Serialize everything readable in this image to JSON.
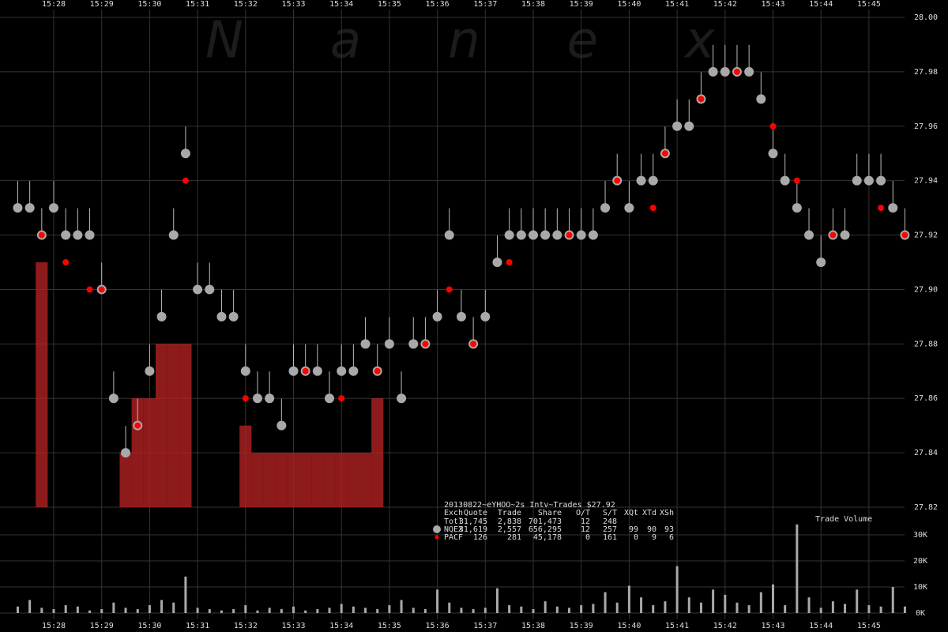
{
  "chart_data": [
    {
      "type": "scatter",
      "watermark": "Nanex",
      "categories": [
        null,
        null,
        null,
        "15:28",
        null,
        null,
        null,
        "15:29",
        null,
        null,
        null,
        "15:30",
        null,
        null,
        null,
        "15:31",
        null,
        null,
        null,
        "15:32",
        null,
        null,
        null,
        "15:33",
        null,
        null,
        null,
        "15:34",
        null,
        null,
        null,
        "15:35",
        null,
        null,
        null,
        "15:36",
        null,
        null,
        null,
        "15:37",
        null,
        null,
        null,
        "15:38",
        null,
        null,
        null,
        "15:39",
        null,
        null,
        null,
        "15:40",
        null,
        null,
        null,
        "15:41",
        null,
        null,
        null,
        "15:42",
        null,
        null,
        null,
        "15:43",
        null,
        null,
        null,
        "15:44",
        null,
        null,
        null,
        "15:45",
        null,
        null,
        null
      ],
      "series": [
        {
          "type": "bar",
          "color": "#b22222",
          "values": [
            null,
            null,
            27.91,
            27.82,
            27.82,
            27.82,
            27.82,
            27.82,
            27.82,
            27.84,
            27.86,
            27.86,
            27.88,
            27.88,
            27.88,
            27.82,
            27.82,
            27.82,
            27.82,
            27.85,
            27.84,
            27.84,
            27.84,
            27.84,
            27.84,
            27.84,
            27.84,
            27.84,
            27.84,
            27.84,
            27.86,
            null,
            null,
            null,
            null,
            null,
            null,
            null,
            null,
            null,
            null,
            null,
            null,
            null,
            null,
            null,
            null,
            null,
            null,
            null,
            null,
            null,
            null,
            null,
            null,
            null,
            null,
            null,
            null,
            null,
            null,
            null,
            null,
            null,
            null,
            null,
            null,
            null,
            null,
            null,
            null,
            null,
            null,
            null,
            null
          ]
        },
        {
          "type": "scatter",
          "color": "#a9a9a9",
          "values": [
            27.93,
            27.93,
            27.92,
            27.93,
            27.92,
            27.92,
            27.92,
            27.9,
            27.86,
            27.84,
            27.85,
            27.87,
            27.89,
            27.92,
            27.95,
            27.9,
            27.9,
            27.89,
            27.89,
            27.87,
            27.86,
            27.86,
            27.85,
            27.87,
            27.87,
            27.87,
            27.86,
            27.87,
            27.87,
            27.88,
            27.87,
            27.88,
            27.86,
            27.88,
            27.88,
            27.89,
            27.92,
            27.89,
            27.88,
            27.89,
            27.91,
            27.92,
            27.92,
            27.92,
            27.92,
            27.92,
            27.92,
            27.92,
            27.92,
            27.93,
            27.94,
            27.93,
            27.94,
            27.94,
            27.95,
            27.96,
            27.96,
            27.97,
            27.98,
            27.98,
            27.98,
            27.98,
            27.97,
            27.95,
            27.94,
            27.93,
            27.92,
            27.91,
            27.92,
            27.92,
            27.94,
            27.94,
            27.94,
            27.93,
            27.92
          ]
        },
        {
          "type": "scatter",
          "color": "#ff0000",
          "values": [
            null,
            null,
            27.92,
            null,
            27.91,
            null,
            27.9,
            27.9,
            null,
            null,
            27.85,
            null,
            null,
            null,
            27.94,
            null,
            null,
            null,
            null,
            27.86,
            null,
            null,
            null,
            null,
            27.87,
            null,
            null,
            27.86,
            null,
            null,
            27.87,
            null,
            null,
            null,
            27.88,
            null,
            27.9,
            null,
            27.88,
            null,
            null,
            27.91,
            null,
            null,
            null,
            null,
            27.92,
            null,
            null,
            null,
            27.94,
            null,
            null,
            27.93,
            27.95,
            null,
            null,
            27.97,
            null,
            null,
            27.98,
            null,
            null,
            27.96,
            null,
            27.94,
            null,
            null,
            27.92,
            null,
            null,
            null,
            27.93,
            null,
            27.92
          ]
        }
      ],
      "ylim": [
        27.82,
        28.0
      ],
      "yticks": [
        {
          "value": 27.82,
          "label": "27.82"
        },
        {
          "value": 27.84,
          "label": "27.84"
        },
        {
          "value": 27.86,
          "label": "27.86"
        },
        {
          "value": 27.88,
          "label": "27.88"
        },
        {
          "value": 27.9,
          "label": "27.90"
        },
        {
          "value": 27.92,
          "label": "27.92"
        },
        {
          "value": 27.94,
          "label": "27.94"
        },
        {
          "value": 27.96,
          "label": "27.96"
        },
        {
          "value": 27.98,
          "label": "27.98"
        },
        {
          "value": 28.0,
          "label": "28.00"
        }
      ],
      "grid": true,
      "table": {
        "title": "20130822~eYHOO~2s Intv~Trades $27.92",
        "header": [
          "Exch",
          "Quote",
          "Trade",
          "Share",
          "O/T",
          "S/T",
          "XQt",
          "XTd",
          "XSh"
        ],
        "rows": [
          [
            "Totl",
            "31,745",
            "2,838",
            "701,473",
            "12",
            "248",
            "",
            "",
            ""
          ],
          [
            "NQEX",
            "31,619",
            "2,557",
            "656,295",
            "12",
            "257",
            "99",
            "90",
            "93"
          ],
          [
            "PACF",
            "126",
            "281",
            "45,178",
            "0",
            "161",
            "0",
            "9",
            "6"
          ]
        ]
      }
    },
    {
      "type": "bar",
      "title": "Trade Volume",
      "color": "#a9a9a9",
      "values": [
        2500,
        5000,
        2000,
        1500,
        3000,
        2500,
        1000,
        1500,
        4000,
        2000,
        1500,
        3000,
        5000,
        4000,
        14000,
        2000,
        1500,
        1000,
        1500,
        3000,
        1000,
        2000,
        1500,
        2500,
        1000,
        1500,
        2000,
        3500,
        2500,
        2000,
        1500,
        3000,
        5000,
        2000,
        1500,
        9000,
        4000,
        2000,
        1500,
        2000,
        9500,
        3000,
        2500,
        1500,
        4500,
        2500,
        2000,
        3000,
        3500,
        8000,
        4000,
        10500,
        6000,
        3000,
        4500,
        18000,
        6000,
        4000,
        9000,
        7000,
        4000,
        3000,
        8000,
        11000,
        3000,
        34000,
        6000,
        2000,
        4500,
        3500,
        9000,
        3000,
        2500,
        10000,
        2500
      ],
      "ylim": [
        0,
        35000
      ],
      "yticks": [
        {
          "value": 0,
          "label": "0K"
        },
        {
          "value": 10000,
          "label": "10K"
        },
        {
          "value": 20000,
          "label": "20K"
        },
        {
          "value": 30000,
          "label": "30K"
        }
      ]
    }
  ]
}
